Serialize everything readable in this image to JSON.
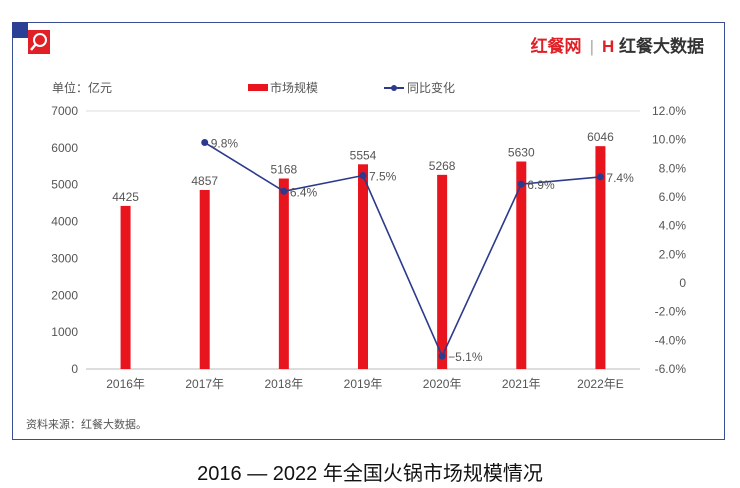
{
  "brand": {
    "name1": "红餐网",
    "name2": "红餐大数据"
  },
  "source": "资料来源：红餐大数据。",
  "colors": {
    "bar": "#e8151f",
    "line": "#2b3a8c",
    "frame": "#3a4e96"
  },
  "chart_data": {
    "type": "bar+line",
    "title": "2016 — 2022 年全国火锅市场规模情况",
    "unit_label": "单位：亿元",
    "categories": [
      "2016年",
      "2017年",
      "2018年",
      "2019年",
      "2020年",
      "2021年",
      "2022年E"
    ],
    "series": [
      {
        "name": "市场规模",
        "type": "bar",
        "axis": "left",
        "values": [
          4425,
          4857,
          5168,
          5554,
          5268,
          5630,
          6046
        ],
        "labels": [
          "4425",
          "4857",
          "5168",
          "5554",
          "5268",
          "5630",
          "6046"
        ]
      },
      {
        "name": "同比变化",
        "type": "line",
        "axis": "right",
        "values": [
          null,
          9.8,
          6.4,
          7.5,
          -5.1,
          6.9,
          7.4
        ],
        "labels": [
          "",
          "9.8%",
          "6.4%",
          "7.5%",
          "−5.1%",
          "6.9%",
          "7.4%"
        ]
      }
    ],
    "left_axis": {
      "ylim": [
        0,
        7000
      ],
      "ticks": [
        "0",
        "1000",
        "2000",
        "3000",
        "4000",
        "5000",
        "6000",
        "7000"
      ]
    },
    "right_axis": {
      "ylim": [
        -6,
        12
      ],
      "ticks": [
        "-6.0%",
        "-4.0%",
        "-2.0%",
        "0",
        "2.0%",
        "4.0%",
        "6.0%",
        "8.0%",
        "10.0%",
        "12.0%"
      ]
    },
    "legend_placement": "top",
    "grid": false
  }
}
